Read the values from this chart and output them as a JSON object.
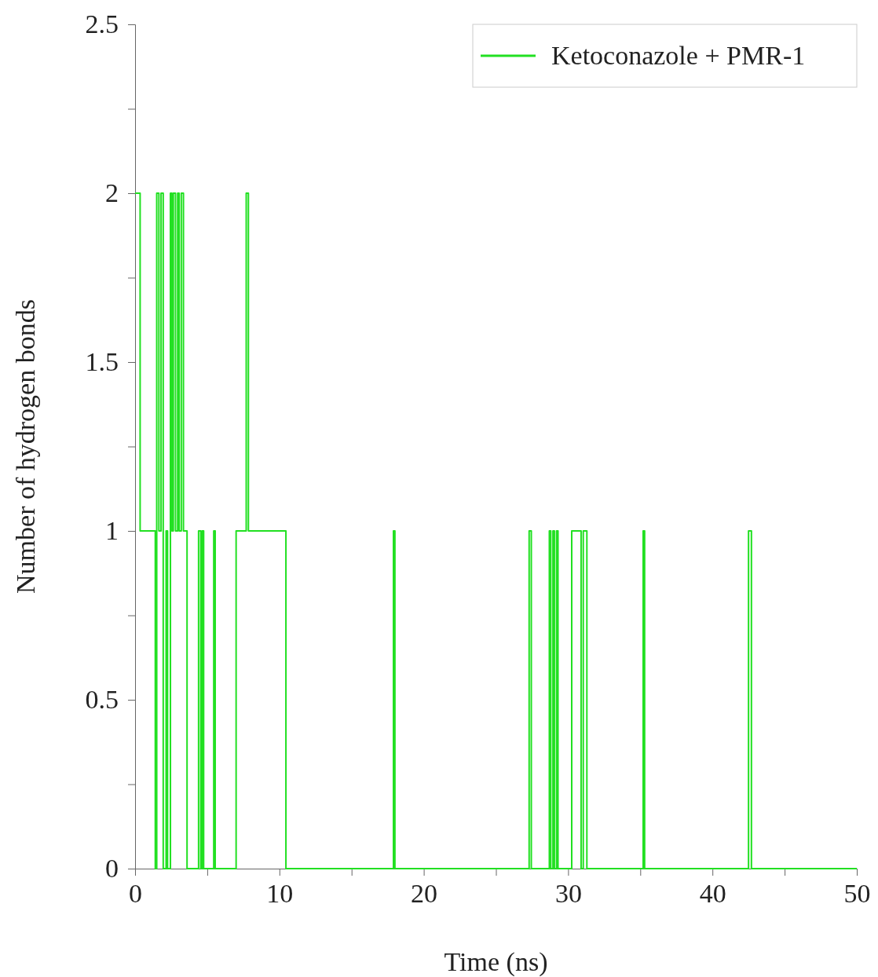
{
  "chart_data": {
    "type": "line",
    "xlabel": "Time (ns)",
    "ylabel": "Number of hydrogen bonds",
    "xlim": [
      0,
      50
    ],
    "ylim": [
      0,
      2.5
    ],
    "xticks": [
      0,
      {
        "value": 5,
        "label": null
      },
      10,
      {
        "value": 15,
        "label": null
      },
      20,
      {
        "value": 25,
        "label": null
      },
      30,
      {
        "value": 35,
        "label": null
      },
      40,
      {
        "value": 45,
        "label": null
      },
      50
    ],
    "yticks": [
      0,
      {
        "value": 0.25,
        "label": null
      },
      0.5,
      {
        "value": 0.75,
        "label": null
      },
      1,
      {
        "value": 1.25,
        "label": null
      },
      1.5,
      {
        "value": 1.75,
        "label": null
      },
      2,
      {
        "value": 2.25,
        "label": null
      },
      2.5
    ],
    "grid": false,
    "legend": "top right",
    "line_style": "solid",
    "series": [
      {
        "name": "Ketoconazole + PMR-1",
        "color": "#22e022",
        "x": [
          0,
          0.35,
          0.35,
          1.4,
          1.4,
          1.5,
          1.5,
          1.65,
          1.65,
          1.8,
          1.8,
          1.95,
          1.95,
          2.15,
          2.15,
          2.25,
          2.25,
          2.45,
          2.45,
          2.55,
          2.55,
          2.65,
          2.65,
          2.8,
          2.8,
          2.95,
          2.95,
          3.05,
          3.05,
          3.2,
          3.2,
          3.35,
          3.35,
          3.6,
          3.6,
          4.4,
          4.4,
          4.55,
          4.55,
          4.65,
          4.65,
          4.75,
          4.75,
          5.45,
          5.45,
          5.55,
          5.55,
          7.0,
          7.0,
          7.7,
          7.7,
          7.85,
          7.85,
          10.45,
          10.45,
          17.9,
          17.9,
          18.0,
          18.0,
          27.3,
          27.3,
          27.45,
          27.45,
          28.7,
          28.7,
          28.8,
          28.8,
          28.95,
          28.95,
          29.05,
          29.05,
          29.2,
          29.2,
          29.3,
          29.3,
          30.25,
          30.25,
          30.9,
          30.9,
          31.05,
          31.05,
          31.3,
          31.3,
          35.2,
          35.2,
          35.3,
          35.3,
          42.5,
          42.5,
          42.7,
          42.7,
          50
        ],
        "values": [
          2,
          2,
          1,
          1,
          0,
          0,
          2,
          2,
          1,
          1,
          2,
          2,
          0,
          0,
          1,
          1,
          0,
          0,
          2,
          2,
          1,
          1,
          2,
          2,
          1,
          1,
          2,
          2,
          1,
          1,
          2,
          2,
          1,
          1,
          0,
          0,
          1,
          1,
          0,
          0,
          1,
          1,
          0,
          0,
          1,
          1,
          0,
          0,
          1,
          1,
          2,
          2,
          1,
          1,
          0,
          0,
          1,
          1,
          0,
          0,
          1,
          1,
          0,
          0,
          1,
          1,
          0,
          0,
          1,
          1,
          0,
          0,
          1,
          1,
          0,
          0,
          1,
          1,
          0,
          0,
          1,
          1,
          0,
          0,
          1,
          1,
          0,
          0,
          1,
          1,
          0,
          0
        ]
      }
    ]
  }
}
